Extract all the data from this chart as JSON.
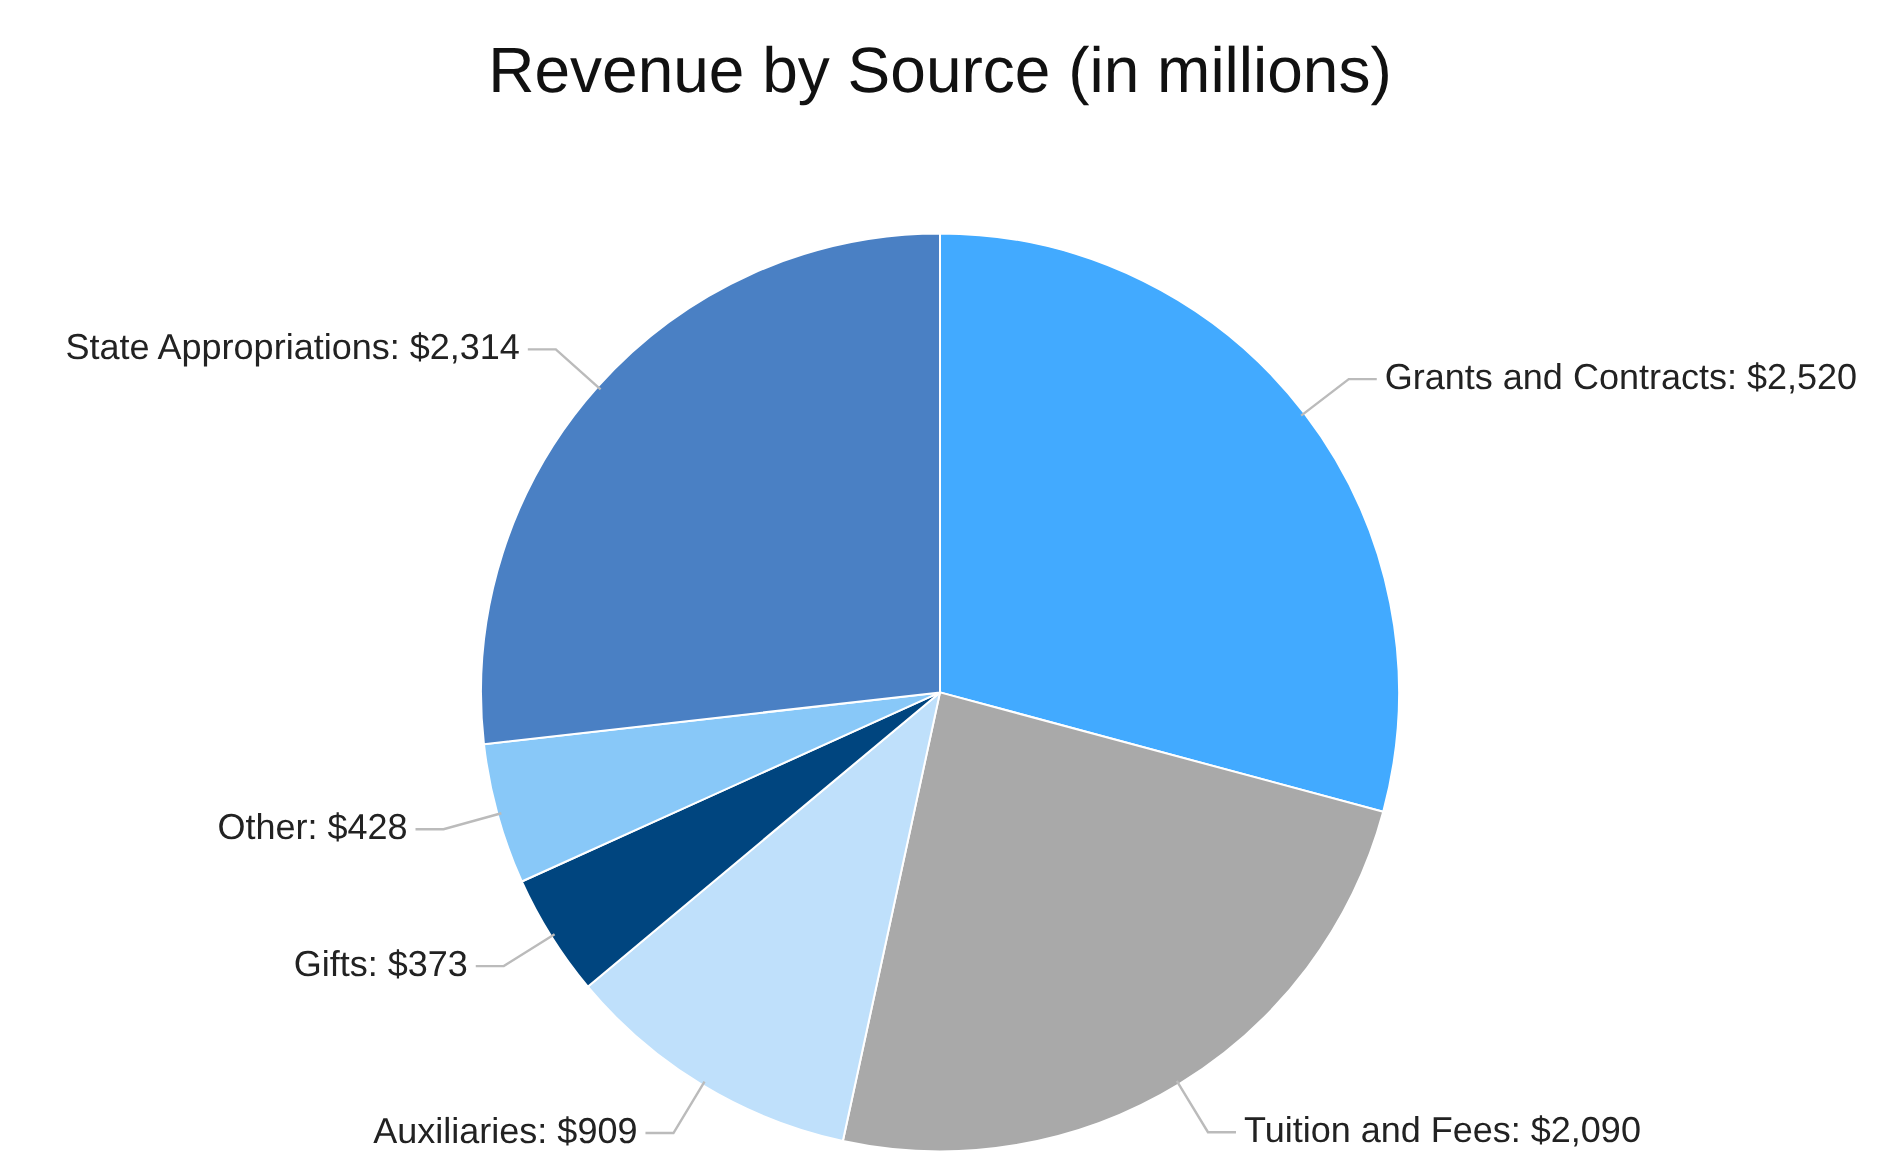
{
  "chart_data": {
    "type": "pie",
    "title": "Revenue by Source (in millions)",
    "categories": [
      "Grants and Contracts",
      "Tuition and Fees",
      "Auxiliaries",
      "Gifts",
      "Other",
      "State Appropriations"
    ],
    "values": [
      2520,
      2090,
      909,
      373,
      428,
      2314
    ],
    "value_labels": [
      "$2,520",
      "$2,090",
      "$909",
      "$373",
      "$428",
      "$2,314"
    ],
    "colors": [
      "#42aaff",
      "#a9a9a9",
      "#bfe0fb",
      "#00457f",
      "#88c8f8",
      "#4a80c4"
    ],
    "legend": false
  }
}
